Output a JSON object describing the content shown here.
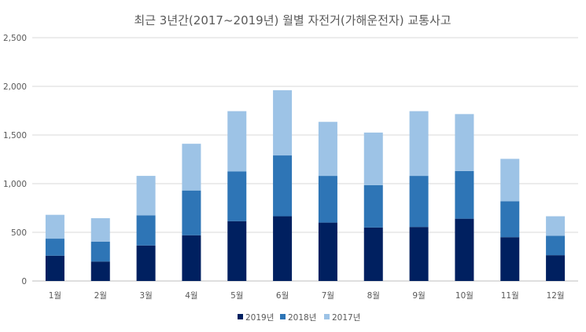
{
  "chart_data": {
    "type": "bar",
    "stacked": true,
    "title": "최근 3년간(2017~2019년) 월별 자전거(가해운전자) 교통사고",
    "categories": [
      "1월",
      "2월",
      "3월",
      "4월",
      "5월",
      "6월",
      "7월",
      "8월",
      "9월",
      "10월",
      "11월",
      "12월"
    ],
    "series": [
      {
        "name": "2019년",
        "color": "#002060",
        "values": [
          260,
          200,
          365,
          470,
          615,
          665,
          600,
          550,
          555,
          640,
          450,
          265
        ]
      },
      {
        "name": "2018년",
        "color": "#2e75b6",
        "values": [
          175,
          205,
          310,
          460,
          510,
          625,
          480,
          435,
          525,
          490,
          370,
          200
        ]
      },
      {
        "name": "2017년",
        "color": "#9dc3e6",
        "values": [
          245,
          240,
          405,
          480,
          620,
          670,
          555,
          540,
          665,
          585,
          435,
          200
        ]
      }
    ],
    "ylim": [
      0,
      2500
    ],
    "yticks": [
      0,
      500,
      1000,
      1500,
      2000,
      2500
    ],
    "ytick_labels": [
      "0",
      "500",
      "1,000",
      "1,500",
      "2,000",
      "2,500"
    ],
    "grid": true,
    "legend": "bottom"
  }
}
